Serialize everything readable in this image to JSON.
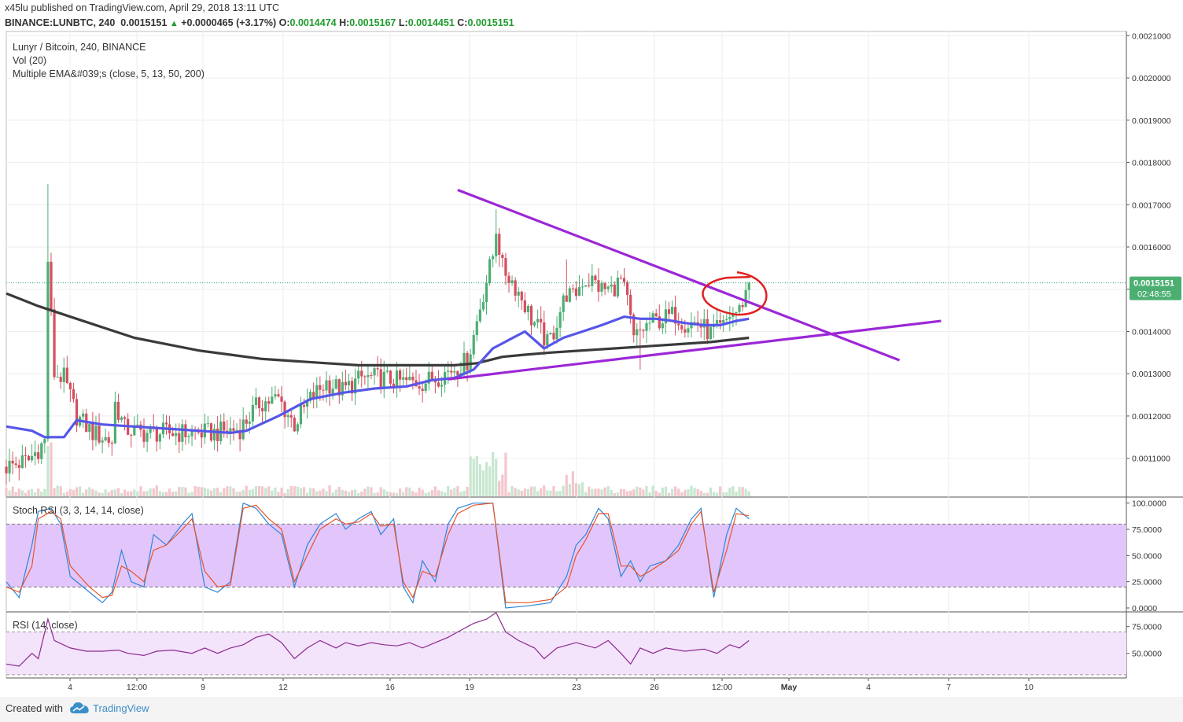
{
  "header": {
    "author": "x45lu",
    "published_text": "published on TradingView.com, April 29, 2018 13:11 UTC",
    "symbol": "BINANCE:LUNBTC, 240",
    "last": "0.0015151",
    "change": "+0.0000465 (+3.17%)",
    "open_label": "O:",
    "open": "0.0014474",
    "high_label": "H:",
    "high": "0.0015167",
    "low_label": "L:",
    "low": "0.0014451",
    "close_label": "C:",
    "close": "0.0015151"
  },
  "legend": {
    "title": "Lunyr / Bitcoin, 240, BINANCE",
    "vol": "Vol (20)",
    "ema": "Multiple EMA&#039;s (close, 5, 13, 50, 200)",
    "stoch": "Stoch RSI (3, 3, 14, 14, close)",
    "rsi": "RSI (14, close)"
  },
  "price_badge": {
    "price": "0.0015151",
    "countdown": "02:48:55"
  },
  "footer": {
    "created": "Created with",
    "brand": "TradingView"
  },
  "colors": {
    "up": "#4caf72",
    "down": "#d44e5e",
    "ema50": "#5656e8",
    "ema200": "#3a3a3a",
    "trendline": "#9c27d6",
    "highlight": "#e02020",
    "stoch_fill": "#e2c6fb",
    "rsi_fill": "#f3e3fb",
    "stoch_k": "#2f86d6",
    "stoch_d": "#e8542b",
    "rsi_line": "#8d2a8d",
    "badge": "#4caf72"
  },
  "chart_data": [
    {
      "type": "candlestick",
      "title": "Lunyr / Bitcoin, 240, BINANCE",
      "y_ticks": [
        "0.0021000",
        "0.0020000",
        "0.0019000",
        "0.0018000",
        "0.0017000",
        "0.0016000",
        "0.0015000",
        "0.0014000",
        "0.0013000",
        "0.0012000",
        "0.0011000"
      ],
      "x_ticks": [
        "4",
        "12:00",
        "9",
        "12",
        "16",
        "19",
        "23",
        "26",
        "12:00",
        "May",
        "4",
        "7",
        "10"
      ],
      "ylim": [
        0.00101,
        0.00211
      ],
      "last_price": 0.0015151,
      "ema50": [
        [
          0,
          0.001175
        ],
        [
          8,
          0.001165
        ],
        [
          12,
          0.00115
        ],
        [
          18,
          0.00115
        ],
        [
          22,
          0.00119
        ],
        [
          30,
          0.00118
        ],
        [
          40,
          0.001175
        ],
        [
          50,
          0.00117
        ],
        [
          60,
          0.001165
        ],
        [
          70,
          0.00116
        ],
        [
          75,
          0.001165
        ],
        [
          85,
          0.0012
        ],
        [
          95,
          0.00124
        ],
        [
          105,
          0.001255
        ],
        [
          115,
          0.001265
        ],
        [
          125,
          0.00127
        ],
        [
          133,
          0.001285
        ],
        [
          140,
          0.00129
        ],
        [
          146,
          0.00131
        ],
        [
          152,
          0.00136
        ],
        [
          157,
          0.00138
        ],
        [
          162,
          0.0014
        ],
        [
          168,
          0.00136
        ],
        [
          174,
          0.001385
        ],
        [
          180,
          0.0014
        ],
        [
          186,
          0.001415
        ],
        [
          193,
          0.001435
        ],
        [
          198,
          0.00143
        ],
        [
          203,
          0.00143
        ],
        [
          208,
          0.001425
        ],
        [
          212,
          0.00142
        ],
        [
          218,
          0.001415
        ],
        [
          223,
          0.001415
        ],
        [
          228,
          0.001425
        ],
        [
          232,
          0.00143
        ]
      ],
      "ema200": [
        [
          0,
          0.00149
        ],
        [
          10,
          0.00146
        ],
        [
          20,
          0.001435
        ],
        [
          30,
          0.00141
        ],
        [
          40,
          0.001385
        ],
        [
          50,
          0.00137
        ],
        [
          60,
          0.001355
        ],
        [
          70,
          0.001345
        ],
        [
          80,
          0.001335
        ],
        [
          90,
          0.00133
        ],
        [
          100,
          0.001325
        ],
        [
          110,
          0.00132
        ],
        [
          120,
          0.00132
        ],
        [
          130,
          0.00132
        ],
        [
          140,
          0.00132
        ],
        [
          147,
          0.001325
        ],
        [
          155,
          0.00134
        ],
        [
          162,
          0.001345
        ],
        [
          170,
          0.00135
        ],
        [
          180,
          0.001355
        ],
        [
          190,
          0.00136
        ],
        [
          200,
          0.001365
        ],
        [
          210,
          0.00137
        ],
        [
          220,
          0.001375
        ],
        [
          232,
          0.001385
        ]
      ],
      "trendlines": [
        {
          "from": [
            141,
            0.001735
          ],
          "to": [
            279,
            0.001332
          ]
        },
        {
          "from": [
            138,
            0.001287
          ],
          "to": [
            292,
            0.001425
          ]
        }
      ],
      "highlight_circle": {
        "x": 227,
        "y": 0.00149
      }
    },
    {
      "type": "line",
      "title": "Stoch RSI (3, 3, 14, 14, close)",
      "y_ticks": [
        "100.0000",
        "75.0000",
        "50.0000",
        "25.0000",
        "0.0000"
      ],
      "ylim": [
        -3,
        105
      ],
      "bands": [
        20,
        80
      ],
      "series": [
        {
          "key": "k",
          "values": [
            [
              0,
              25
            ],
            [
              4,
              10
            ],
            [
              8,
              60
            ],
            [
              10,
              92
            ],
            [
              14,
              95
            ],
            [
              17,
              80
            ],
            [
              20,
              30
            ],
            [
              26,
              15
            ],
            [
              30,
              5
            ],
            [
              33,
              15
            ],
            [
              36,
              55
            ],
            [
              39,
              25
            ],
            [
              43,
              20
            ],
            [
              46,
              70
            ],
            [
              50,
              60
            ],
            [
              55,
              80
            ],
            [
              58,
              90
            ],
            [
              62,
              20
            ],
            [
              66,
              15
            ],
            [
              70,
              25
            ],
            [
              74,
              100
            ],
            [
              78,
              95
            ],
            [
              82,
              80
            ],
            [
              86,
              70
            ],
            [
              90,
              20
            ],
            [
              94,
              60
            ],
            [
              98,
              80
            ],
            [
              103,
              90
            ],
            [
              106,
              75
            ],
            [
              110,
              85
            ],
            [
              114,
              92
            ],
            [
              117,
              70
            ],
            [
              121,
              85
            ],
            [
              124,
              20
            ],
            [
              127,
              5
            ],
            [
              130,
              45
            ],
            [
              134,
              25
            ],
            [
              138,
              80
            ],
            [
              141,
              95
            ],
            [
              146,
              100
            ],
            [
              152,
              100
            ],
            [
              156,
              0
            ],
            [
              163,
              2
            ],
            [
              170,
              5
            ],
            [
              175,
              30
            ],
            [
              178,
              60
            ],
            [
              181,
              70
            ],
            [
              185,
              95
            ],
            [
              188,
              85
            ],
            [
              192,
              30
            ],
            [
              195,
              45
            ],
            [
              198,
              25
            ],
            [
              201,
              40
            ],
            [
              206,
              45
            ],
            [
              210,
              60
            ],
            [
              214,
              85
            ],
            [
              217,
              95
            ],
            [
              221,
              10
            ],
            [
              225,
              70
            ],
            [
              228,
              95
            ],
            [
              232,
              85
            ]
          ]
        },
        {
          "key": "d",
          "values": [
            [
              0,
              20
            ],
            [
              4,
              15
            ],
            [
              8,
              40
            ],
            [
              10,
              85
            ],
            [
              14,
              92
            ],
            [
              17,
              85
            ],
            [
              20,
              40
            ],
            [
              26,
              20
            ],
            [
              30,
              10
            ],
            [
              33,
              12
            ],
            [
              36,
              40
            ],
            [
              39,
              35
            ],
            [
              43,
              25
            ],
            [
              46,
              55
            ],
            [
              50,
              60
            ],
            [
              55,
              75
            ],
            [
              58,
              85
            ],
            [
              62,
              35
            ],
            [
              66,
              20
            ],
            [
              70,
              22
            ],
            [
              74,
              95
            ],
            [
              78,
              98
            ],
            [
              82,
              85
            ],
            [
              86,
              75
            ],
            [
              90,
              25
            ],
            [
              94,
              50
            ],
            [
              98,
              75
            ],
            [
              103,
              85
            ],
            [
              106,
              80
            ],
            [
              110,
              82
            ],
            [
              114,
              90
            ],
            [
              117,
              78
            ],
            [
              121,
              80
            ],
            [
              124,
              25
            ],
            [
              127,
              10
            ],
            [
              130,
              35
            ],
            [
              134,
              30
            ],
            [
              138,
              70
            ],
            [
              141,
              90
            ],
            [
              146,
              98
            ],
            [
              152,
              100
            ],
            [
              156,
              5
            ],
            [
              163,
              5
            ],
            [
              170,
              8
            ],
            [
              175,
              20
            ],
            [
              178,
              50
            ],
            [
              181,
              65
            ],
            [
              185,
              90
            ],
            [
              188,
              90
            ],
            [
              192,
              40
            ],
            [
              195,
              40
            ],
            [
              198,
              30
            ],
            [
              201,
              35
            ],
            [
              206,
              45
            ],
            [
              210,
              55
            ],
            [
              214,
              80
            ],
            [
              217,
              92
            ],
            [
              221,
              15
            ],
            [
              225,
              55
            ],
            [
              228,
              90
            ],
            [
              232,
              88
            ]
          ]
        }
      ]
    },
    {
      "type": "line",
      "title": "RSI (14, close)",
      "y_ticks": [
        "75.0000",
        "50.0000"
      ],
      "ylim": [
        27,
        88
      ],
      "bands": [
        30,
        70
      ],
      "series": [
        {
          "key": "rsi",
          "values": [
            [
              0,
              40
            ],
            [
              4,
              38
            ],
            [
              8,
              50
            ],
            [
              10,
              45
            ],
            [
              13,
              82
            ],
            [
              15,
              62
            ],
            [
              20,
              55
            ],
            [
              25,
              52
            ],
            [
              30,
              52
            ],
            [
              35,
              53
            ],
            [
              38,
              50
            ],
            [
              43,
              48
            ],
            [
              47,
              52
            ],
            [
              52,
              53
            ],
            [
              58,
              50
            ],
            [
              62,
              55
            ],
            [
              66,
              50
            ],
            [
              70,
              55
            ],
            [
              74,
              58
            ],
            [
              78,
              65
            ],
            [
              82,
              68
            ],
            [
              86,
              60
            ],
            [
              90,
              45
            ],
            [
              94,
              55
            ],
            [
              98,
              62
            ],
            [
              103,
              55
            ],
            [
              106,
              60
            ],
            [
              110,
              57
            ],
            [
              114,
              60
            ],
            [
              118,
              58
            ],
            [
              122,
              57
            ],
            [
              126,
              60
            ],
            [
              130,
              55
            ],
            [
              134,
              60
            ],
            [
              138,
              65
            ],
            [
              141,
              70
            ],
            [
              146,
              78
            ],
            [
              150,
              82
            ],
            [
              153,
              88
            ],
            [
              156,
              70
            ],
            [
              160,
              62
            ],
            [
              165,
              55
            ],
            [
              168,
              45
            ],
            [
              172,
              55
            ],
            [
              178,
              60
            ],
            [
              184,
              55
            ],
            [
              188,
              62
            ],
            [
              192,
              50
            ],
            [
              195,
              40
            ],
            [
              198,
              55
            ],
            [
              202,
              50
            ],
            [
              206,
              55
            ],
            [
              212,
              52
            ],
            [
              218,
              54
            ],
            [
              222,
              50
            ],
            [
              226,
              58
            ],
            [
              229,
              55
            ],
            [
              232,
              62
            ]
          ]
        }
      ]
    }
  ]
}
